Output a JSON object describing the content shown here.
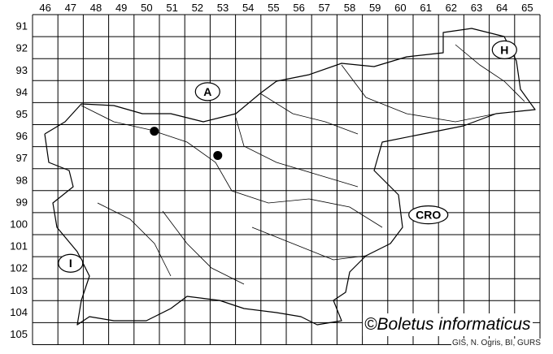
{
  "map": {
    "grid_columns": [
      "46",
      "47",
      "48",
      "49",
      "50",
      "51",
      "52",
      "53",
      "54",
      "55",
      "56",
      "57",
      "58",
      "59",
      "60",
      "61",
      "62",
      "63",
      "64",
      "65"
    ],
    "grid_rows": [
      "91",
      "92",
      "93",
      "94",
      "95",
      "96",
      "97",
      "98",
      "99",
      "100",
      "101",
      "102",
      "103",
      "104",
      "105"
    ],
    "neighbour_labels": [
      {
        "label": "A",
        "col": 52.9,
        "row": 94.5
      },
      {
        "label": "H",
        "col": 64.6,
        "row": 92.6
      },
      {
        "label": "CRO",
        "col": 61.6,
        "row": 100.1
      },
      {
        "label": "I",
        "col": 47.5,
        "row": 102.3
      }
    ],
    "records": [
      {
        "col": 50.8,
        "row": 96.3
      },
      {
        "col": 53.3,
        "row": 97.4
      }
    ],
    "colors": {
      "grid": "#000000",
      "outline": "#000000",
      "record": "#000000"
    }
  },
  "credit": "©Boletus informaticus",
  "source": "GIS, N. Ogris, BI, GURS"
}
